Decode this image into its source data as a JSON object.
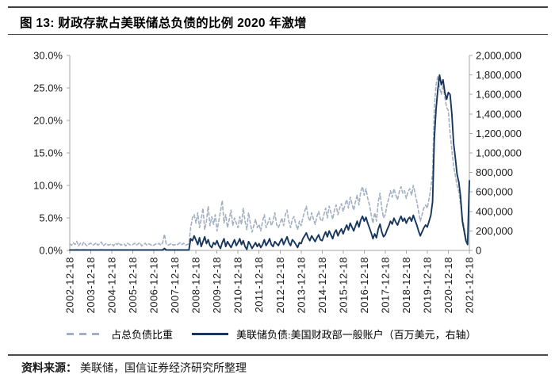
{
  "header": {
    "title": "图 13:  财政存款占美联储总负债的比例 2020 年激增"
  },
  "footer": {
    "source_label": "资料来源：",
    "source_text": "美联储，国信证券经济研究所整理"
  },
  "colors": {
    "ratio_line": "#a3b0c2",
    "tga_line": "#17365d",
    "axis": "#a6a6a6",
    "tick_label": "#1a1a1a"
  },
  "chart_data": {
    "type": "line",
    "title": "财政存款占美联储总负债的比例 2020 年激增",
    "x_frequency": "monthly",
    "x_start": "2002-12",
    "x_end": "2021-12",
    "x_tick_labels": [
      "2002-12-18",
      "2003-12-18",
      "2004-12-18",
      "2005-12-18",
      "2006-12-18",
      "2007-12-18",
      "2008-12-18",
      "2009-12-18",
      "2010-12-18",
      "2011-12-18",
      "2012-12-18",
      "2013-12-18",
      "2014-12-18",
      "2015-12-18",
      "2016-12-18",
      "2017-12-18",
      "2018-12-18",
      "2019-12-18",
      "2020-12-18",
      "2021-12-18"
    ],
    "left_axis": {
      "min": 0,
      "max": 30,
      "tick_labels": [
        "0.0%",
        "5.0%",
        "10.0%",
        "15.0%",
        "20.0%",
        "25.0%",
        "30.0%"
      ]
    },
    "right_axis": {
      "min": 0,
      "max": 2000000,
      "tick_labels": [
        "0",
        "200,000",
        "400,000",
        "600,000",
        "800,000",
        "1,000,000",
        "1,200,000",
        "1,400,000",
        "1,600,000",
        "1,800,000",
        "2,000,000"
      ]
    },
    "grid": false,
    "legend_position": "bottom",
    "series": [
      {
        "name": "占总负债比重",
        "axis": "left",
        "style": "dashed",
        "color": "#a3b0c2",
        "width": 1.6,
        "values": [
          1.0,
          0.8,
          1.2,
          0.9,
          1.4,
          0.7,
          1.1,
          0.8,
          1.3,
          0.9,
          0.7,
          1.0,
          1.1,
          0.8,
          0.9,
          1.2,
          0.8,
          1.0,
          1.3,
          0.7,
          0.9,
          1.1,
          0.8,
          0.9,
          1.0,
          0.7,
          1.1,
          0.9,
          1.2,
          0.8,
          0.9,
          1.0,
          0.7,
          1.1,
          0.9,
          0.8,
          0.9,
          1.1,
          0.8,
          1.0,
          1.2,
          0.7,
          0.9,
          1.1,
          0.8,
          1.0,
          0.9,
          0.7,
          0.8,
          1.0,
          0.9,
          1.1,
          0.8,
          1.2,
          2.5,
          1.0,
          0.8,
          0.9,
          1.1,
          0.8,
          0.9,
          0.8,
          1.0,
          1.2,
          0.9,
          1.1,
          0.8,
          0.9,
          1.0,
          3.5,
          5.0,
          5.5,
          4.2,
          5.8,
          3.5,
          4.8,
          6.5,
          3.2,
          4.5,
          6.8,
          3.8,
          5.2,
          4.0,
          5.5,
          3.0,
          4.5,
          6.0,
          7.7,
          4.2,
          5.5,
          3.5,
          4.8,
          6.2,
          3.8,
          5.0,
          4.2,
          3.5,
          5.2,
          4.0,
          6.5,
          4.5,
          3.2,
          5.8,
          4.2,
          2.8,
          3.8,
          4.8,
          3.5,
          4.0,
          3.0,
          4.5,
          5.5,
          3.5,
          4.2,
          5.0,
          3.8,
          4.5,
          5.8,
          4.0,
          3.5,
          4.2,
          5.0,
          3.8,
          5.5,
          6.2,
          4.5,
          3.5,
          4.8,
          5.2,
          4.0,
          3.2,
          4.5,
          3.8,
          5.0,
          6.0,
          6.8,
          5.2,
          4.5,
          5.8,
          4.8,
          4.0,
          5.2,
          6.0,
          4.8,
          4.5,
          5.5,
          6.5,
          5.0,
          6.8,
          5.8,
          4.8,
          6.2,
          7.0,
          5.5,
          6.5,
          7.2,
          6.0,
          7.0,
          7.8,
          6.5,
          8.2,
          7.2,
          6.2,
          7.5,
          8.5,
          7.0,
          9.0,
          9.8,
          8.5,
          9.5,
          8.0,
          7.0,
          5.5,
          4.2,
          5.8,
          4.5,
          7.5,
          8.8,
          6.5,
          5.0,
          5.5,
          7.0,
          8.0,
          9.2,
          8.2,
          9.5,
          8.5,
          7.8,
          9.0,
          9.8,
          8.8,
          9.2,
          8.0,
          9.0,
          9.5,
          8.5,
          10.0,
          8.8,
          7.5,
          6.0,
          4.5,
          5.5,
          6.5,
          7.0,
          6.5,
          8.0,
          9.5,
          12.0,
          22.0,
          25.5,
          26.8,
          25.0,
          24.0,
          25.5,
          23.5,
          22.0,
          21.5,
          18.0,
          15.5,
          13.0,
          11.5,
          10.0,
          9.0,
          7.0,
          5.0,
          3.5,
          2.0,
          1.5,
          10.5
        ]
      },
      {
        "name": "美联储负债:美国财政部一般账户（百万美元，右轴）",
        "axis": "right",
        "style": "solid",
        "color": "#17365d",
        "width": 1.9,
        "values": [
          5000,
          4800,
          5200,
          4600,
          5400,
          4700,
          5100,
          4900,
          5300,
          4800,
          4600,
          5000,
          5100,
          4700,
          4900,
          5200,
          4800,
          5000,
          5300,
          4600,
          4900,
          5100,
          4800,
          4900,
          5000,
          4600,
          5100,
          4900,
          5200,
          4800,
          4900,
          5000,
          4700,
          5100,
          4900,
          4800,
          4900,
          5100,
          4800,
          5000,
          5200,
          4700,
          4900,
          5100,
          4800,
          5000,
          4900,
          4700,
          4800,
          5000,
          4900,
          5100,
          4800,
          5200,
          20000,
          5000,
          4800,
          4900,
          5100,
          4800,
          4900,
          4800,
          5000,
          5200,
          4900,
          5100,
          4800,
          4900,
          5000,
          120000,
          100000,
          150000,
          106000,
          60000,
          130000,
          40000,
          90000,
          140000,
          70000,
          110000,
          50000,
          30000,
          80000,
          60000,
          100000,
          50000,
          20000,
          80000,
          120000,
          40000,
          90000,
          60000,
          30000,
          70000,
          110000,
          50000,
          80000,
          120000,
          60000,
          100000,
          40000,
          10000,
          90000,
          60000,
          20000,
          50000,
          80000,
          40000,
          70000,
          30000,
          60000,
          110000,
          50000,
          80000,
          120000,
          60000,
          40000,
          90000,
          70000,
          50000,
          90000,
          120000,
          60000,
          100000,
          140000,
          80000,
          50000,
          110000,
          90000,
          60000,
          30000,
          80000,
          70000,
          120000,
          150000,
          180000,
          130000,
          100000,
          150000,
          120000,
          90000,
          130000,
          160000,
          110000,
          100000,
          150000,
          190000,
          140000,
          200000,
          160000,
          120000,
          180000,
          210000,
          150000,
          190000,
          220000,
          170000,
          220000,
          260000,
          210000,
          280000,
          240000,
          200000,
          250000,
          300000,
          240000,
          310000,
          350000,
          300000,
          340000,
          280000,
          230000,
          180000,
          120000,
          170000,
          130000,
          220000,
          270000,
          190000,
          140000,
          160000,
          210000,
          250000,
          300000,
          270000,
          330000,
          290000,
          260000,
          310000,
          350000,
          300000,
          330000,
          280000,
          320000,
          340000,
          300000,
          360000,
          310000,
          260000,
          200000,
          150000,
          190000,
          230000,
          260000,
          240000,
          300000,
          360000,
          500000,
          1150000,
          1450000,
          1650000,
          1800000,
          1700000,
          1750000,
          1620000,
          1550000,
          1620000,
          1600000,
          1400000,
          1100000,
          950000,
          780000,
          700000,
          550000,
          300000,
          200000,
          100000,
          60000,
          715000
        ]
      }
    ]
  }
}
